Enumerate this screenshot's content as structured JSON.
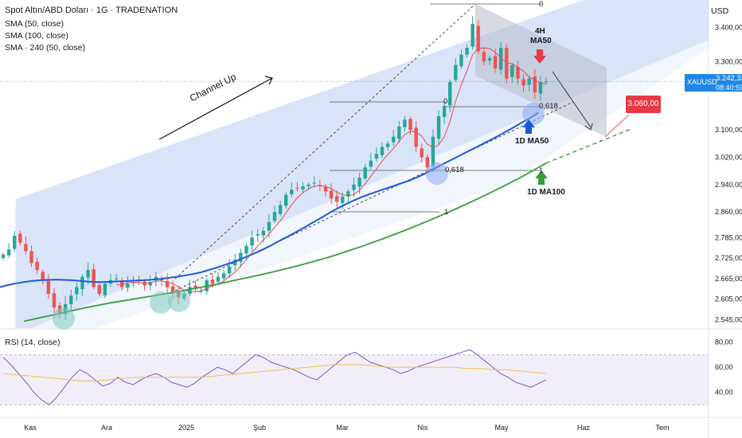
{
  "header": {
    "title": "Spot Altın/ABD Doları · 1G · TRADENATION",
    "indicators": [
      "SMA (50, close)",
      "SMA (100, close)",
      "SMA · 240 (50, close)"
    ]
  },
  "price_axis": {
    "currency": "USD",
    "labels": [
      "3.400,00",
      "3.300,00",
      "3.100,00",
      "3.020,00",
      "2.940,00",
      "2.860,00",
      "2.785,00",
      "2.725,00",
      "2.665,00",
      "2.605,00",
      "2.545,00"
    ]
  },
  "rsi": {
    "label": "RSI (14, close)",
    "axis_labels": [
      "80,00",
      "60,00",
      "40,00"
    ]
  },
  "time_axis": {
    "labels": [
      "Kas",
      "Ara",
      "2025",
      "Şub",
      "Mar",
      "Nis",
      "May",
      "Haz",
      "Tem"
    ]
  },
  "current_price": {
    "symbol": "XAUUSD",
    "value": "3.242,33",
    "countdown": "08:40:59"
  },
  "target_price": "3.060,00",
  "annotations": {
    "channel": "Channel Up",
    "ma50_4h_line1": "4H",
    "ma50_4h_line2": "MA50",
    "ma50_1d": "1D MA50",
    "ma100_1d": "1D MA100"
  },
  "fib_labels": [
    "0",
    "0",
    "0,618",
    "0,618",
    "1",
    "1"
  ],
  "colors": {
    "ma50": "#1e5bd6",
    "ma100": "#3a9c3a",
    "ma4h": "#e0505a",
    "up": "#26a69a",
    "down": "#ef5350",
    "channel": "#c8d6f5",
    "rsi_line": "#7e57c2",
    "rsi_ma": "#f2c14e"
  },
  "chart_data": [
    {
      "type": "candlestick",
      "title": "Spot Altın/ABD Doları · 1G · TRADENATION",
      "x_ticks": [
        "Kas",
        "Ara",
        "2025",
        "Şub",
        "Mar",
        "Nis",
        "May",
        "Haz",
        "Tem"
      ],
      "ylim": [
        2520,
        3480
      ],
      "y_scale": "linear",
      "series_close": [
        2735,
        2750,
        2790,
        2770,
        2745,
        2710,
        2690,
        2660,
        2620,
        2580,
        2565,
        2590,
        2615,
        2640,
        2670,
        2690,
        2640,
        2620,
        2650,
        2660,
        2665,
        2640,
        2650,
        2655,
        2660,
        2645,
        2655,
        2670,
        2660,
        2640,
        2625,
        2610,
        2620,
        2640,
        2635,
        2630,
        2660,
        2650,
        2670,
        2680,
        2700,
        2720,
        2740,
        2760,
        2785,
        2795,
        2805,
        2830,
        2860,
        2880,
        2910,
        2925,
        2930,
        2935,
        2940,
        2945,
        2935,
        2920,
        2900,
        2890,
        2905,
        2920,
        2940,
        2960,
        2990,
        3010,
        3030,
        3050,
        3060,
        3080,
        3110,
        3130,
        3100,
        3050,
        3020,
        2990,
        3080,
        3140,
        3170,
        3240,
        3290,
        3320,
        3340,
        3410,
        3330,
        3300,
        3310,
        3280,
        3340,
        3250,
        3290,
        3250,
        3230,
        3250,
        3210,
        3240,
        3242
      ],
      "sma50_1d": [
        2640,
        2646,
        2651,
        2655,
        2658,
        2660,
        2661,
        2662,
        2661,
        2660,
        2658,
        2656,
        2655,
        2655,
        2656,
        2657,
        2658,
        2659,
        2660,
        2662,
        2664,
        2667,
        2670,
        2674,
        2678,
        2683,
        2690,
        2697,
        2705,
        2713,
        2722,
        2732,
        2742,
        2753,
        2765,
        2778,
        2790,
        2803,
        2816,
        2830,
        2843,
        2857,
        2870,
        2882,
        2893,
        2903,
        2912,
        2920,
        2928,
        2936,
        2944,
        2952,
        2962,
        2973,
        2985,
        2998,
        3010,
        3022,
        3034,
        3046,
        3058,
        3070,
        3082,
        3095,
        3108,
        3122,
        3135,
        3150
      ],
      "sma100_1d": [
        2540,
        2548,
        2556,
        2564,
        2572,
        2580,
        2587,
        2594,
        2600,
        2606,
        2612,
        2618,
        2624,
        2631,
        2638,
        2645,
        2652,
        2660,
        2668,
        2676,
        2684,
        2693,
        2702,
        2712,
        2722,
        2733,
        2745,
        2757,
        2770,
        2783,
        2797,
        2811,
        2826,
        2841,
        2857,
        2873,
        2890,
        2907,
        2925,
        2943,
        2962,
        2982,
        3003
      ],
      "target": 3060
    },
    {
      "type": "line",
      "title": "RSI (14, close)",
      "ylim": [
        20,
        90
      ],
      "levels": [
        70,
        30
      ],
      "rsi": [
        68,
        62,
        55,
        48,
        40,
        34,
        30,
        36,
        44,
        52,
        58,
        55,
        50,
        45,
        47,
        52,
        48,
        46,
        50,
        53,
        55,
        52,
        48,
        46,
        44,
        47,
        52,
        56,
        60,
        58,
        55,
        60,
        65,
        70,
        68,
        64,
        62,
        60,
        58,
        55,
        52,
        50,
        55,
        60,
        65,
        70,
        72,
        68,
        64,
        62,
        60,
        58,
        55,
        57,
        60,
        62,
        64,
        66,
        68,
        70,
        72,
        74,
        70,
        65,
        60,
        55,
        52,
        48,
        46,
        44,
        47,
        50
      ],
      "rsi_ma": [
        55,
        54,
        53,
        52,
        51,
        50,
        49,
        49,
        50,
        51,
        52,
        52,
        52,
        52,
        52,
        52,
        53,
        54,
        55,
        56,
        57,
        58,
        59,
        60,
        61,
        62,
        62,
        62,
        61,
        60,
        60,
        60,
        60,
        60,
        60,
        59,
        59,
        58,
        58,
        57,
        56,
        55
      ]
    }
  ]
}
